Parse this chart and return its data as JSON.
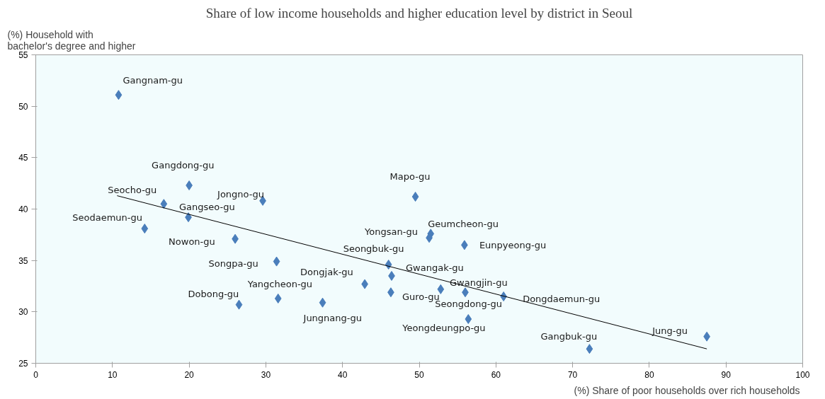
{
  "chart_data": {
    "type": "scatter",
    "title": "Share of low income households and higher education level by district in Seoul",
    "xlabel": "(%) Share of poor households over  rich households",
    "ylabel": "(%) Household with\nbachelor's degree and higher",
    "xlim": [
      0,
      100
    ],
    "xticks": [
      0,
      10,
      20,
      30,
      40,
      50,
      60,
      70,
      80,
      90,
      100
    ],
    "ylim": [
      25,
      55
    ],
    "yticks": [
      25,
      30,
      35,
      40,
      45,
      50,
      55
    ],
    "grid": false,
    "marker": "diamond",
    "series": [
      {
        "color": "#4a7ebb",
        "x": [
          10.8,
          20.0,
          16.7,
          29.6,
          19.9,
          14.2,
          26.0,
          31.4,
          26.5,
          31.6,
          37.4,
          42.9,
          49.5,
          51.5,
          51.3,
          55.9,
          46.0,
          46.4,
          46.3,
          52.8,
          56.0,
          61.0,
          56.4,
          72.2,
          87.5
        ],
        "values": [
          51.1,
          42.3,
          40.5,
          40.8,
          39.2,
          38.1,
          37.1,
          34.9,
          30.7,
          31.3,
          30.9,
          32.7,
          41.2,
          37.6,
          37.2,
          36.5,
          34.6,
          33.5,
          31.9,
          32.2,
          31.9,
          31.5,
          29.3,
          26.4,
          27.6
        ]
      },
      {
        "type": "line",
        "marker": "none",
        "color": "#000000",
        "x": [
          10.6,
          87.5
        ],
        "values": [
          41.3,
          26.4
        ]
      }
    ],
    "annotations": [
      {
        "text": "Gangnam-gu",
        "x": 10.8,
        "y": 51.1
      },
      {
        "text": "Gangdong-gu",
        "x": 20.0,
        "y": 42.3
      },
      {
        "text": "Seocho-gu",
        "x": 16.7,
        "y": 40.5
      },
      {
        "text": "Jongno-gu",
        "x": 29.6,
        "y": 40.8
      },
      {
        "text": "Gangseo-gu",
        "x": 19.9,
        "y": 39.2
      },
      {
        "text": "Seodaemun-gu",
        "x": 14.2,
        "y": 38.1
      },
      {
        "text": "Nowon-gu",
        "x": 26.0,
        "y": 37.1
      },
      {
        "text": "Songpa-gu",
        "x": 31.4,
        "y": 34.9
      },
      {
        "text": "Dobong-gu",
        "x": 26.5,
        "y": 30.7
      },
      {
        "text": "Yangcheon-gu",
        "x": 31.6,
        "y": 31.3
      },
      {
        "text": "Jungnang-gu",
        "x": 37.4,
        "y": 30.9
      },
      {
        "text": "Dongjak-gu",
        "x": 42.9,
        "y": 32.7
      },
      {
        "text": "Mapo-gu",
        "x": 49.5,
        "y": 41.2
      },
      {
        "text": "Geumcheon-gu",
        "x": 51.5,
        "y": 37.6
      },
      {
        "text": "Yongsan-gu",
        "x": 51.3,
        "y": 37.2
      },
      {
        "text": "Eunpyeong-gu",
        "x": 55.9,
        "y": 36.5
      },
      {
        "text": "Seongbuk-gu",
        "x": 46.0,
        "y": 34.6
      },
      {
        "text": "Gwangak-gu",
        "x": 46.4,
        "y": 33.5
      },
      {
        "text": "Guro-gu",
        "x": 46.3,
        "y": 31.9
      },
      {
        "text": "Seongdong-gu",
        "x": 52.8,
        "y": 32.2
      },
      {
        "text": "Gwangjin-gu",
        "x": 56.0,
        "y": 31.9
      },
      {
        "text": "Dongdaemun-gu",
        "x": 61.0,
        "y": 31.5
      },
      {
        "text": "Yeongdeungpo-gu",
        "x": 56.4,
        "y": 29.3
      },
      {
        "text": "Gangbuk-gu",
        "x": 72.2,
        "y": 26.4
      },
      {
        "text": "Jung-gu",
        "x": 87.5,
        "y": 27.6
      }
    ]
  }
}
